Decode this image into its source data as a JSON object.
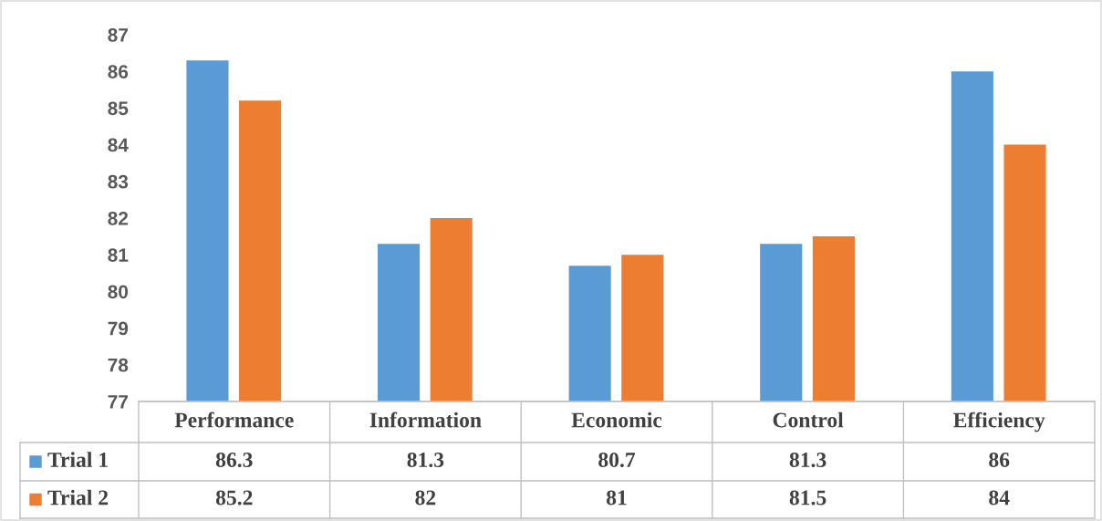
{
  "chart_data": {
    "type": "bar",
    "categories": [
      "Performance",
      "Information",
      "Economic",
      "Control",
      "Efficiency"
    ],
    "series": [
      {
        "name": "Trial 1",
        "color": "#5b9bd5",
        "values": [
          86.3,
          81.3,
          80.7,
          81.3,
          86
        ]
      },
      {
        "name": "Trial 2",
        "color": "#ed7d31",
        "values": [
          85.2,
          82,
          81,
          81.5,
          84
        ]
      }
    ],
    "ylim": [
      77,
      87
    ],
    "yticks": [
      77,
      78,
      79,
      80,
      81,
      82,
      83,
      84,
      85,
      86,
      87
    ],
    "data_labels": true,
    "legend": "bottom",
    "grid": false
  }
}
